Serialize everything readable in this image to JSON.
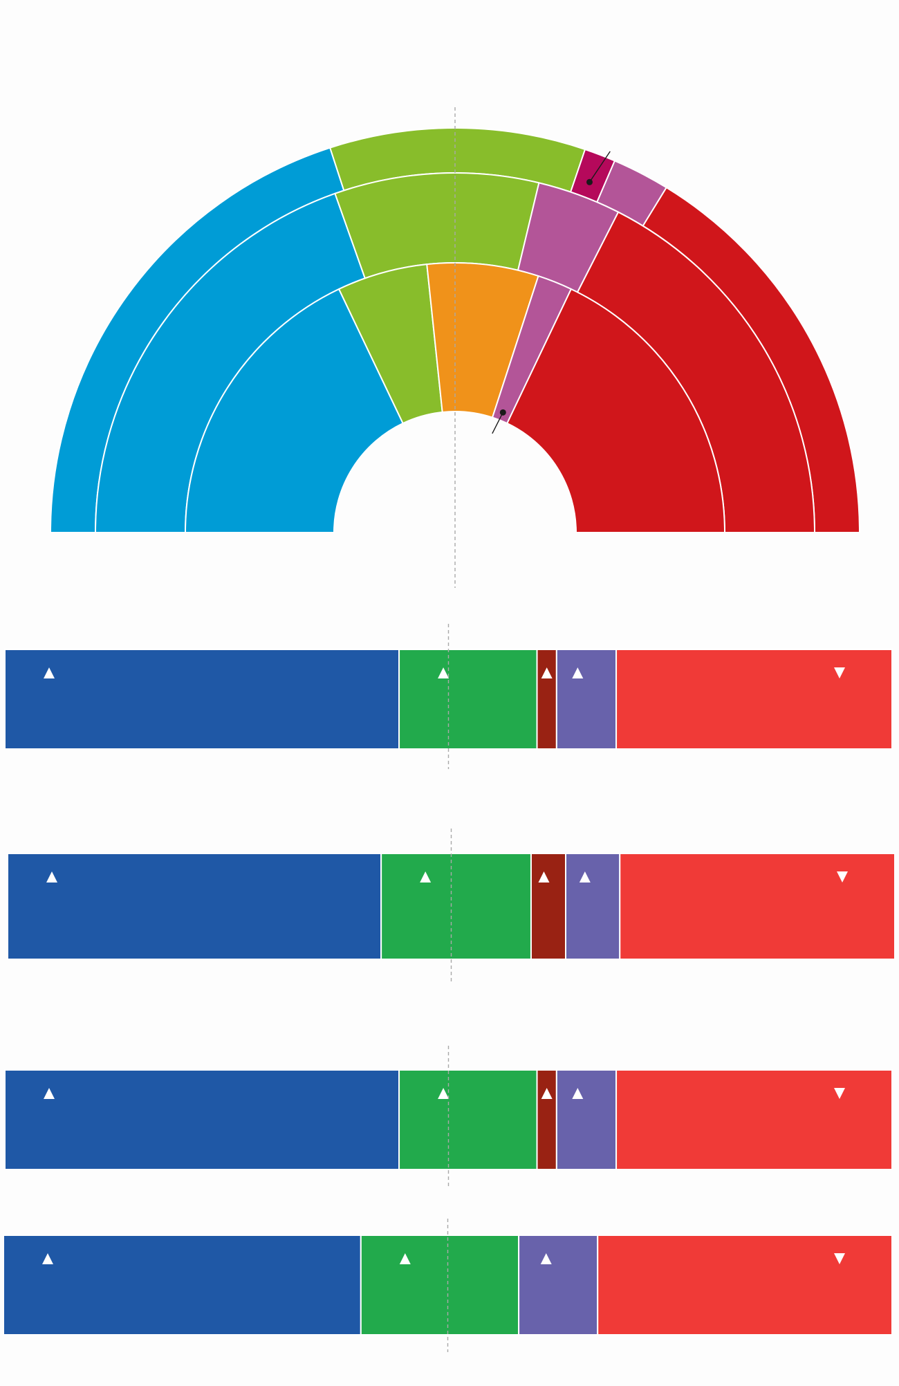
{
  "chart_data": [
    {
      "type": "pie",
      "subtype": "semicircle-rings",
      "rings": [
        {
          "name": "",
          "segments": [
            {
              "value": 48.0,
              "color": "#009cd6"
            },
            {
              "value": 24.5,
              "color": "#88bd2b"
            },
            {
              "value": 3.0,
              "color": "#b5095b"
            },
            {
              "value": 5.5,
              "color": "#b35598"
            },
            {
              "value": 39.0,
              "color": "#d0161b"
            }
          ]
        },
        {
          "name": "",
          "segments": [
            {
              "value": 47.0,
              "color": "#009cd6"
            },
            {
              "value": 22.0,
              "color": "#88bd2b"
            },
            {
              "value": 9.0,
              "color": "#b35598"
            },
            {
              "value": 42.0,
              "color": "#d0161b"
            }
          ]
        },
        {
          "name": "",
          "segments": [
            {
              "value": 43.0,
              "color": "#009cd6"
            },
            {
              "value": 13.0,
              "color": "#88bd2b"
            },
            {
              "value": 16.0,
              "color": "#f0921a"
            },
            {
              "value": 5.0,
              "color": "#b35598"
            },
            {
              "value": 43.0,
              "color": "#d0161b"
            }
          ]
        }
      ],
      "majority_line": true
    },
    {
      "type": "bar",
      "subtype": "stacked-horizontal-100",
      "rows": [
        {
          "segments": [
            {
              "value": 44.3,
              "color": "#1f58a6",
              "trend": "up"
            },
            {
              "value": 15.5,
              "color": "#22aa4c",
              "trend": "up"
            },
            {
              "value": 2.2,
              "color": "#992213",
              "trend": "up"
            },
            {
              "value": 6.7,
              "color": "#6862ab",
              "trend": "up"
            },
            {
              "value": 31.0,
              "color": "#f03a37",
              "trend": "down"
            }
          ]
        },
        {
          "segments": [
            {
              "value": 42.1,
              "color": "#1f58a6",
              "trend": "up"
            },
            {
              "value": 16.9,
              "color": "#22aa4c",
              "trend": "up"
            },
            {
              "value": 3.9,
              "color": "#992213",
              "trend": "up"
            },
            {
              "value": 6.1,
              "color": "#6862ab",
              "trend": "up"
            },
            {
              "value": 31.0,
              "color": "#f03a37",
              "trend": "down"
            }
          ]
        },
        {
          "segments": [
            {
              "value": 44.3,
              "color": "#1f58a6",
              "trend": "up"
            },
            {
              "value": 15.5,
              "color": "#22aa4c",
              "trend": "up"
            },
            {
              "value": 2.2,
              "color": "#992213",
              "trend": "up"
            },
            {
              "value": 6.7,
              "color": "#6862ab",
              "trend": "up"
            },
            {
              "value": 31.0,
              "color": "#f03a37",
              "trend": "down"
            }
          ]
        },
        {
          "segments": [
            {
              "value": 40.3,
              "color": "#1f58a6",
              "trend": "up"
            },
            {
              "value": 17.8,
              "color": "#22aa4c",
              "trend": "up"
            },
            {
              "value": 8.9,
              "color": "#6862ab",
              "trend": "up"
            },
            {
              "value": 33.2,
              "color": "#f03a37",
              "trend": "down"
            }
          ]
        }
      ],
      "majority_line": true
    }
  ]
}
